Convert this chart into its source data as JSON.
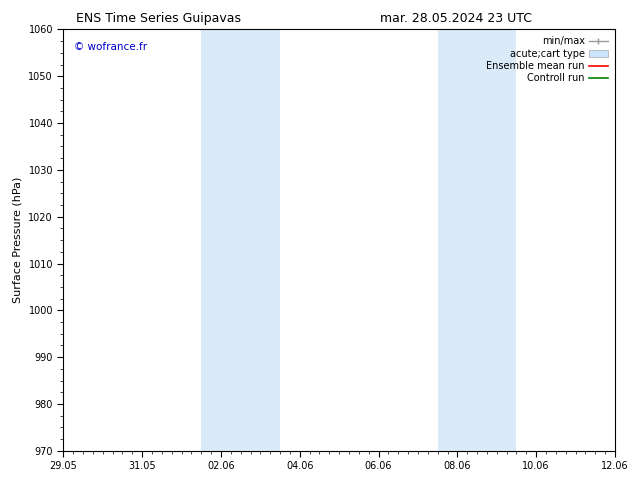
{
  "title_left": "ENS Time Series Guipavas",
  "title_right": "mar. 28.05.2024 23 UTC",
  "ylabel": "Surface Pressure (hPa)",
  "ylim": [
    970,
    1060
  ],
  "yticks": [
    970,
    980,
    990,
    1000,
    1010,
    1020,
    1030,
    1040,
    1050,
    1060
  ],
  "xtick_labels": [
    "29.05",
    "31.05",
    "02.06",
    "04.06",
    "06.06",
    "08.06",
    "10.06",
    "12.06"
  ],
  "xtick_positions": [
    0,
    2,
    4,
    6,
    8,
    10,
    12,
    14
  ],
  "xlim": [
    0,
    14
  ],
  "background_color": "#ffffff",
  "plot_bg_color": "#ffffff",
  "shaded_regions": [
    {
      "x_start": 3.5,
      "x_end": 5.5,
      "color": "#daeaf8"
    },
    {
      "x_start": 9.5,
      "x_end": 11.5,
      "color": "#daeaf8"
    }
  ],
  "watermark": "© wofrance.fr",
  "watermark_color": "#0000cc",
  "legend_labels": [
    "min/max",
    "acute;cart type",
    "Ensemble mean run",
    "Controll run"
  ],
  "legend_colors": [
    "#999999",
    "#cce5ff",
    "#ff0000",
    "#008000"
  ],
  "title_fontsize": 9,
  "label_fontsize": 8,
  "tick_fontsize": 7,
  "legend_fontsize": 7
}
